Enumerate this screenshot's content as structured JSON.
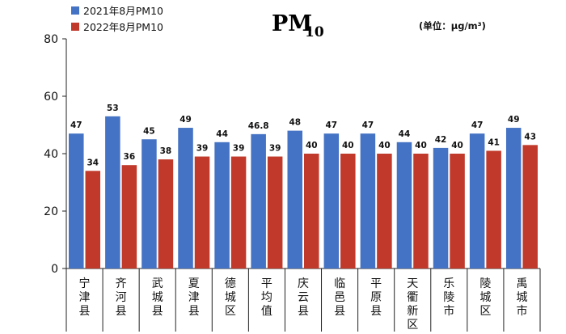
{
  "chart_data": {
    "type": "bar",
    "title": "PM",
    "title_subscript": "10",
    "unit_label": "(单位：μg/m³)",
    "categories": [
      "宁津县",
      "齐河县",
      "武城县",
      "夏津县",
      "德城区",
      "平均值",
      "庆云县",
      "临邑县",
      "平原县",
      "天衢新区",
      "乐陵市",
      "陵城区",
      "禹城市"
    ],
    "series": [
      {
        "name": "2021年8月PM10",
        "color": "#4472C4",
        "values": [
          47,
          53,
          45,
          49,
          44,
          46.8,
          48,
          47,
          47,
          44,
          42,
          47,
          49
        ],
        "labels": [
          "47",
          "53",
          "45",
          "49",
          "44",
          "46.8",
          "48",
          "47",
          "47",
          "44",
          "42",
          "47",
          "49"
        ]
      },
      {
        "name": "2022年8月PM10",
        "color": "#C0392B",
        "values": [
          34,
          36,
          38,
          39,
          39,
          39,
          40,
          40,
          40,
          40,
          40,
          41,
          43
        ],
        "labels": [
          "34",
          "36",
          "38",
          "39",
          "39",
          "39",
          "40",
          "40",
          "40",
          "40",
          "40",
          "41",
          "43"
        ]
      }
    ],
    "ylim": [
      0,
      80
    ],
    "yticks": [
      0,
      20,
      40,
      60,
      80
    ],
    "ytick_labels": [
      "0",
      "20",
      "40",
      "60",
      "80"
    ],
    "legend_position": "top-left",
    "grid": false
  }
}
